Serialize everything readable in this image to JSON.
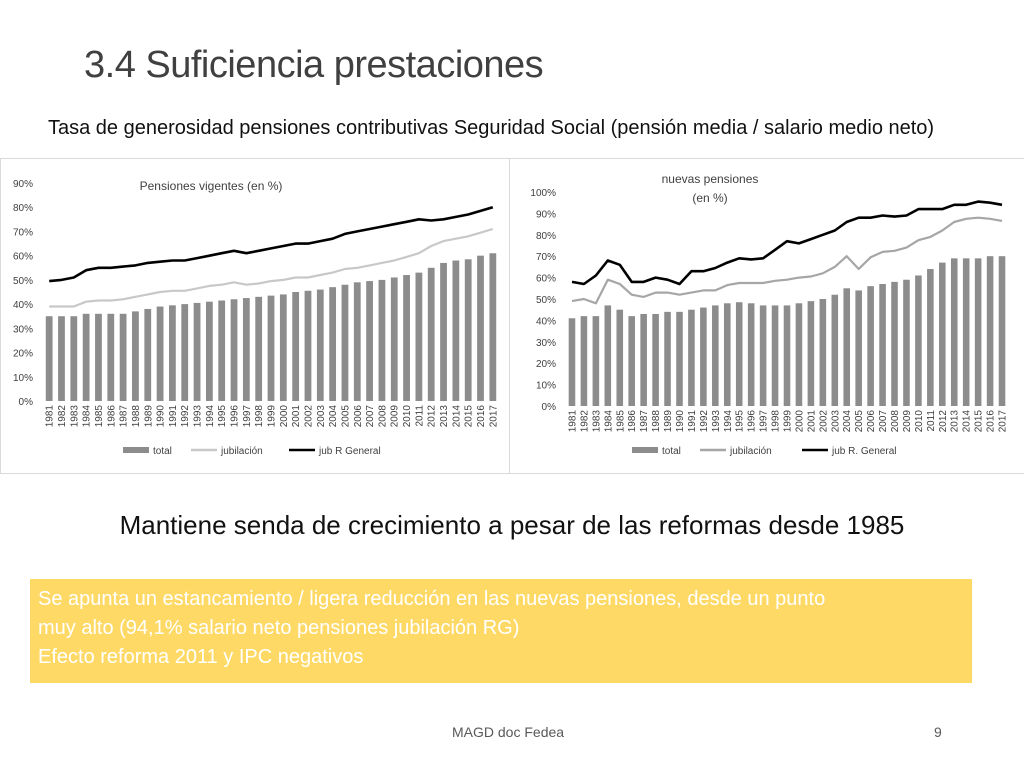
{
  "slide": {
    "title": "3.4 Suficiencia prestaciones",
    "subtitle": "Tasa de generosidad pensiones contributivas Seguridad Social (pensión media / salario medio neto)",
    "headline": "Mantiene senda de crecimiento a pesar de las reformas desde 1985",
    "note_lines": [
      "Se apunta un estancamiento / ligera reducción en las nuevas pensiones, desde un punto",
      "muy alto (94,1% salario neto pensiones jubilación RG)",
      "Efecto reforma 2011 y IPC negativos"
    ],
    "footer_source": "MAGD doc Fedea",
    "page_number": "9"
  },
  "chart_data": [
    {
      "type": "bar+line",
      "title": "Pensiones vigentes (en %)",
      "categories": [
        "1981",
        "1982",
        "1983",
        "1984",
        "1985",
        "1986",
        "1987",
        "1988",
        "1989",
        "1990",
        "1991",
        "1992",
        "1993",
        "1994",
        "1995",
        "1996",
        "1997",
        "1998",
        "1999",
        "2000",
        "2001",
        "2002",
        "2003",
        "2004",
        "2005",
        "2006",
        "2007",
        "2008",
        "2009",
        "2010",
        "2011",
        "2012",
        "2013",
        "2014",
        "2015",
        "2016",
        "2017"
      ],
      "ylim": [
        0,
        90
      ],
      "yticks": [
        0,
        10,
        20,
        30,
        40,
        50,
        60,
        70,
        80,
        90
      ],
      "ytick_format": "percent",
      "legend_position": "bottom",
      "series": [
        {
          "name": "total",
          "kind": "bar",
          "color": "#8c8c8c",
          "values": [
            35,
            35,
            35,
            36,
            36,
            36,
            36,
            37,
            38,
            39,
            39.5,
            40,
            40.5,
            41,
            41.5,
            42,
            42.5,
            43,
            43.5,
            44,
            45,
            45.5,
            46,
            47,
            48,
            49,
            49.5,
            50,
            51,
            52,
            53,
            55,
            57,
            58,
            58.5,
            60,
            61
          ]
        },
        {
          "name": "jubilación",
          "kind": "line",
          "color": "#c8c8c8",
          "values": [
            39,
            39,
            39,
            41,
            41.5,
            41.5,
            42,
            43,
            44,
            45,
            45.5,
            45.5,
            46.5,
            47.5,
            48,
            49,
            48,
            48.5,
            49.5,
            50,
            51,
            51,
            52,
            53,
            54.5,
            55,
            56,
            57,
            58,
            59.5,
            61,
            64,
            66,
            67,
            68,
            69.5,
            71
          ]
        },
        {
          "name": "jub R General",
          "kind": "line",
          "color": "#000000",
          "values": [
            49.5,
            50,
            51,
            54,
            55,
            55,
            55.5,
            56,
            57,
            57.5,
            58,
            58,
            59,
            60,
            61,
            62,
            61,
            62,
            63,
            64,
            65,
            65,
            66,
            67,
            69,
            70,
            71,
            72,
            73,
            74,
            75,
            74.5,
            75,
            76,
            77,
            78.5,
            80
          ]
        }
      ]
    },
    {
      "type": "bar+line",
      "title": "nuevas pensiones (en %)",
      "categories": [
        "1981",
        "1982",
        "1983",
        "1984",
        "1985",
        "1986",
        "1987",
        "1988",
        "1989",
        "1990",
        "1991",
        "1992",
        "1993",
        "1994",
        "1995",
        "1996",
        "1997",
        "1998",
        "1999",
        "2000",
        "2001",
        "2002",
        "2003",
        "2004",
        "2005",
        "2006",
        "2007",
        "2008",
        "2009",
        "2010",
        "2011",
        "2012",
        "2013",
        "2014",
        "2015",
        "2016",
        "2017"
      ],
      "ylim": [
        0,
        100
      ],
      "yticks": [
        0,
        10,
        20,
        30,
        40,
        50,
        60,
        70,
        80,
        90,
        100
      ],
      "ytick_format": "percent",
      "legend_position": "bottom",
      "series": [
        {
          "name": "total",
          "kind": "bar",
          "color": "#8c8c8c",
          "values": [
            41,
            42,
            42,
            47,
            45,
            42,
            43,
            43,
            44,
            44,
            45,
            46,
            47,
            48,
            48.5,
            48,
            47,
            47,
            47,
            48,
            49,
            50,
            52,
            55,
            54,
            56,
            57,
            58,
            59,
            61,
            64,
            67,
            69,
            69,
            69,
            70,
            70
          ]
        },
        {
          "name": "jubilación",
          "kind": "line",
          "color": "#a6a6a6",
          "values": [
            49,
            50,
            48,
            59,
            57,
            52,
            51,
            53,
            53,
            52,
            53,
            54,
            54,
            56.5,
            57.5,
            57.5,
            57.5,
            58.5,
            59,
            60,
            60.5,
            62,
            65,
            70,
            64,
            69.5,
            72,
            72.5,
            74,
            77.5,
            79,
            82,
            86,
            87.5,
            88,
            87.5,
            86.5
          ]
        },
        {
          "name": "jub R. General",
          "kind": "line",
          "color": "#000000",
          "values": [
            58,
            57,
            61,
            68,
            66,
            58,
            58,
            60,
            59,
            57,
            63,
            63,
            64.5,
            67,
            69,
            68.5,
            69,
            73,
            77,
            76,
            78,
            80,
            82,
            86,
            88,
            88,
            89,
            88.5,
            89,
            92,
            92,
            92,
            94,
            94,
            95.5,
            95,
            94
          ]
        }
      ]
    }
  ]
}
